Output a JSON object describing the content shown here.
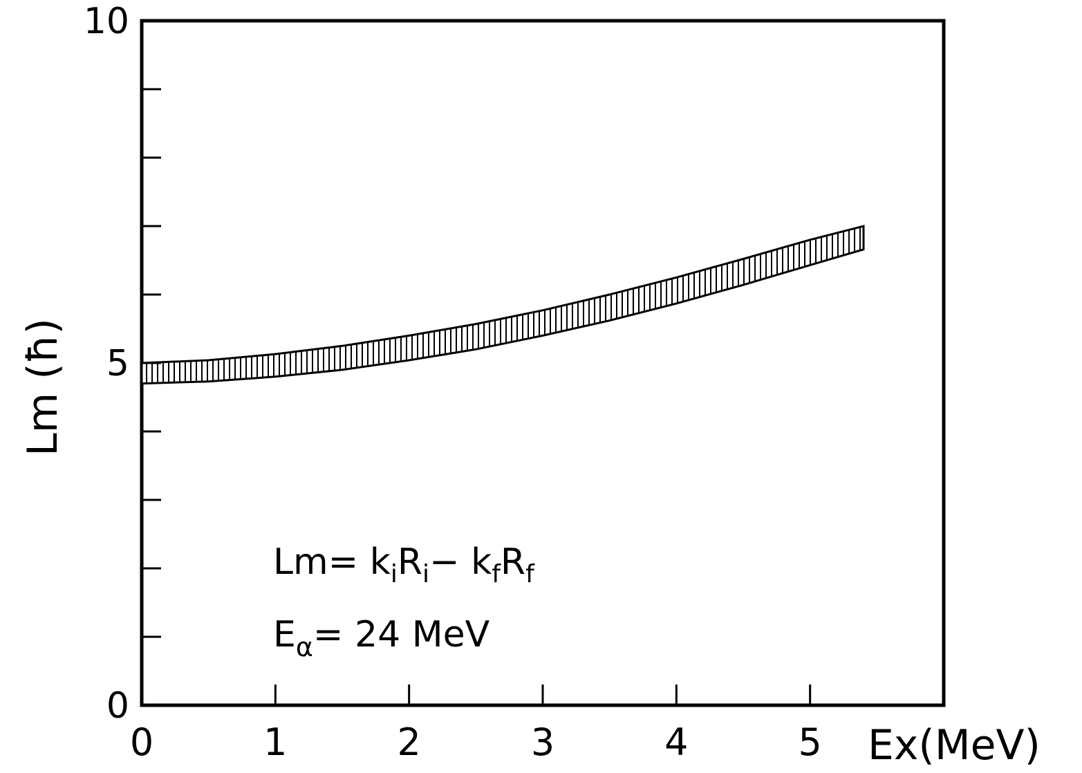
{
  "chart_data": {
    "type": "area",
    "title": "",
    "xlabel": "Ex(MeV)",
    "ylabel": "Lm (ħ)",
    "xlim": [
      0,
      6
    ],
    "ylim": [
      0,
      10
    ],
    "x_tick_labels": [
      "0",
      "1",
      "2",
      "3",
      "4",
      "5"
    ],
    "y_tick_labels": [
      "0",
      "5",
      "10"
    ],
    "minor_y_ticks": [
      1,
      2,
      3,
      4,
      6,
      7,
      8,
      9
    ],
    "grid": false,
    "band_style": "hatched",
    "series": [
      {
        "x": [
          0.0,
          0.5,
          1.0,
          1.5,
          2.0,
          2.5,
          3.0,
          3.5,
          4.0,
          4.5,
          5.0,
          5.4
        ],
        "upper": [
          5.0,
          5.04,
          5.13,
          5.25,
          5.4,
          5.57,
          5.77,
          6.0,
          6.25,
          6.52,
          6.8,
          7.0
        ],
        "lower": [
          4.7,
          4.73,
          4.8,
          4.9,
          5.04,
          5.2,
          5.4,
          5.62,
          5.87,
          6.14,
          6.43,
          6.66
        ]
      }
    ],
    "annotations": [
      {
        "id": "formula",
        "text": "Lm= kiRi− kfRf"
      },
      {
        "id": "energy",
        "text": "Eα= 24 MeV"
      }
    ]
  }
}
